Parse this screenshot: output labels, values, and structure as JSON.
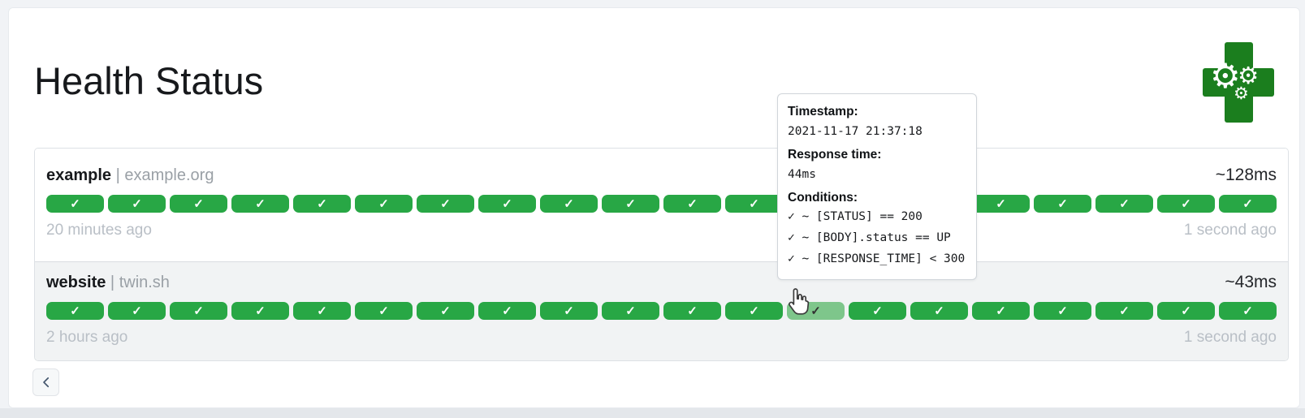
{
  "header": {
    "title": "Health Status",
    "logo": {
      "name": "gatus-health-cross-logo",
      "gear_glyph": "⚙"
    }
  },
  "endpoints": [
    {
      "name": "example",
      "separator": "|",
      "hostname": "example.org",
      "avg_response_time": "~128ms",
      "oldest_label": "20 minutes ago",
      "newest_label": "1 second ago",
      "check_glyph": "✓",
      "results": [
        "up",
        "up",
        "up",
        "up",
        "up",
        "up",
        "up",
        "up",
        "up",
        "up",
        "up",
        "up",
        "up",
        "up",
        "up",
        "up",
        "up",
        "up",
        "up",
        "up"
      ]
    },
    {
      "name": "website",
      "separator": "|",
      "hostname": "twin.sh",
      "avg_response_time": "~43ms",
      "oldest_label": "2 hours ago",
      "newest_label": "1 second ago",
      "check_glyph": "✓",
      "hovered_index": 12,
      "results": [
        "up",
        "up",
        "up",
        "up",
        "up",
        "up",
        "up",
        "up",
        "up",
        "up",
        "up",
        "up",
        "up",
        "up",
        "up",
        "up",
        "up",
        "up",
        "up",
        "up"
      ]
    }
  ],
  "tooltip": {
    "timestamp_label": "Timestamp:",
    "timestamp_value": "2021-11-17 21:37:18",
    "response_label": "Response time:",
    "response_value": "44ms",
    "conditions_label": "Conditions:",
    "conditions": [
      "✓ ~ [STATUS] == 200",
      "✓ ~ [BODY].status == UP",
      "✓ ~ [RESPONSE_TIME] < 300"
    ]
  },
  "pagination": {
    "previous": "chevron-left"
  },
  "colors": {
    "success": "#28a745",
    "success_hover": "#7ec68b",
    "logo_green": "#1b7e1e",
    "muted_text": "#b9bfc6"
  }
}
